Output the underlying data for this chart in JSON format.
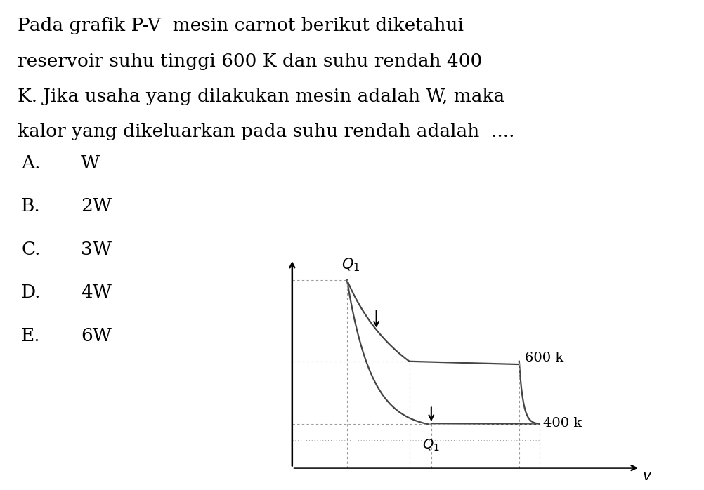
{
  "bg_color": "#ffffff",
  "text_color": "#000000",
  "curve_color": "#444444",
  "dashed_color": "#999999",
  "title_lines": [
    "Pada grafik P-V  mesin carnot berikut diketahui",
    "reservoir suhu tinggi 600 K dan suhu rendah 400",
    "K. Jika usaha yang dilakukan mesin adalah W, maka",
    "kalor yang dikeluarkan pada suhu rendah adalah  ...."
  ],
  "options": [
    [
      "A.",
      "W"
    ],
    [
      "B.",
      "2W"
    ],
    [
      "C.",
      "3W"
    ],
    [
      "D.",
      "4W"
    ],
    [
      "E.",
      "6W"
    ]
  ],
  "label_600k": "600 k",
  "label_400k": "400 k",
  "label_Q1_top": "$Q_1$",
  "label_Q1_bot": "$Q_1$",
  "label_v": "$v$",
  "title_fontsize": 19,
  "options_fontsize": 19,
  "graph_fontsize": 14
}
